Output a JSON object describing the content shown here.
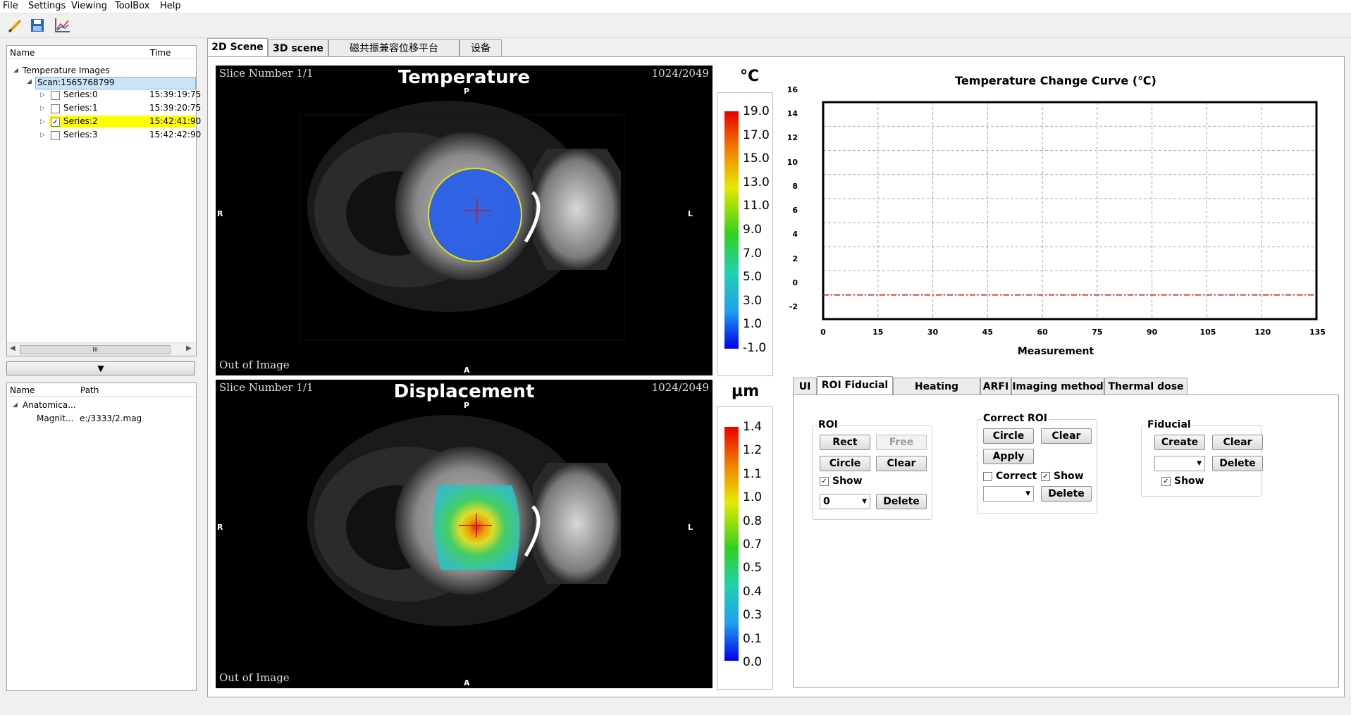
{
  "menu": [
    "File",
    "Settings",
    "Viewing",
    "ToolBox",
    "Help"
  ],
  "toolbar_icons": [
    "pencil-icon",
    "save-icon",
    "chart-icon"
  ],
  "tree1": {
    "col_name": "Name",
    "col_time": "Time",
    "root": "Temperature Images",
    "scan": "Scan:1565768799",
    "series": [
      {
        "label": "Series:0",
        "time": "15:39:19:75",
        "checked": false
      },
      {
        "label": "Series:1",
        "time": "15:39:20:75",
        "checked": false
      },
      {
        "label": "Series:2",
        "time": "15:42:41:90",
        "checked": true
      },
      {
        "label": "Series:3",
        "time": "15:42:42:90",
        "checked": false
      }
    ],
    "scroll_grip": "III"
  },
  "collapse_arrow": "▼",
  "tree2": {
    "col_name": "Name",
    "col_path": "Path",
    "root": "Anatomica...",
    "child_name": "Magnit...",
    "child_path": "e:/3333/2.mag"
  },
  "main_tabs": [
    "2D Scene",
    "3D scene",
    "磁共振兼容位移平台",
    "设备"
  ],
  "temperature_view": {
    "slice": "Slice Number  1/1",
    "title": "Temperature",
    "counter": "1024/2049",
    "status": "Out of Image",
    "orient": {
      "top": "P",
      "bottom": "A",
      "left": "R",
      "right": "L"
    }
  },
  "displacement_view": {
    "slice": "Slice Number  1/1",
    "title": "Displacement",
    "counter": "1024/2049",
    "status": "Out of Image",
    "orient": {
      "top": "P",
      "bottom": "A",
      "left": "R",
      "right": "L"
    }
  },
  "temp_colorbar": {
    "unit": "°C",
    "labels": [
      "19.0",
      "17.0",
      "15.0",
      "13.0",
      "11.0",
      "9.0",
      "7.0",
      "5.0",
      "3.0",
      "1.0",
      "-1.0"
    ]
  },
  "disp_colorbar": {
    "unit": "μm",
    "labels": [
      "1.4",
      "1.2",
      "1.1",
      "1.0",
      "0.8",
      "0.7",
      "0.5",
      "0.4",
      "0.3",
      "0.1",
      "0.0"
    ]
  },
  "chart_data": {
    "type": "line",
    "title": "Temperature Change Curve (℃)",
    "xlabel": "Measurement",
    "ylabel": "",
    "xlim": [
      0,
      135
    ],
    "ylim": [
      -2,
      16
    ],
    "x_ticks": [
      "0",
      "15",
      "30",
      "45",
      "60",
      "75",
      "90",
      "105",
      "120",
      "135"
    ],
    "y_ticks": [
      "16",
      "14",
      "12",
      "10",
      "8",
      "6",
      "4",
      "2",
      "0",
      "-2"
    ],
    "grid": true,
    "series": [
      {
        "x": [
          0,
          135
        ],
        "y": [
          0,
          0
        ],
        "color": "#e00000",
        "style": "dash-dot"
      }
    ]
  },
  "control_tabs": [
    "UI",
    "ROI Fiducial",
    "Heating control",
    "ARFI",
    "Imaging method",
    "Thermal dose"
  ],
  "roi": {
    "label": "ROI",
    "rect": "Rect",
    "free": "Free",
    "circle": "Circle",
    "clear": "Clear",
    "show": "Show",
    "show_checked": true,
    "combo_value": "0",
    "delete": "Delete"
  },
  "correct_roi": {
    "label": "Correct ROI",
    "circle": "Circle",
    "clear": "Clear",
    "apply": "Apply",
    "correct": "Correct",
    "correct_checked": false,
    "show": "Show",
    "show_checked": true,
    "combo_value": "",
    "delete": "Delete"
  },
  "fiducial": {
    "label": "Fiducial",
    "create": "Create",
    "clear": "Clear",
    "combo_value": "",
    "delete": "Delete",
    "show": "Show",
    "show_checked": true
  },
  "colors": {
    "selected_row": "#ffff00",
    "scan_highlight": "#cce4f7",
    "curve": "#e00000",
    "roi_circle": "#e8e000"
  }
}
